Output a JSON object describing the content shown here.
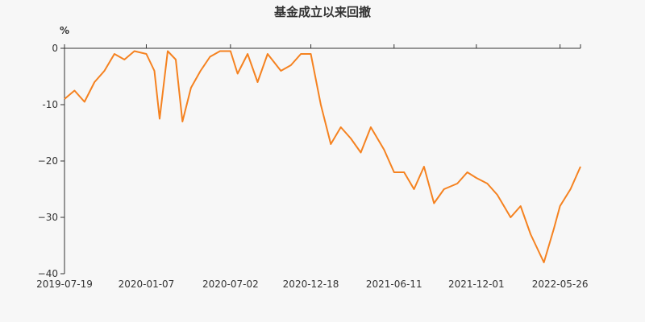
{
  "chart_data": {
    "type": "line",
    "title": "基金成立以来回撤",
    "ylabel": "%",
    "xlabel": "",
    "ylim": [
      -40,
      0
    ],
    "y_ticks": [
      0,
      -10,
      -20,
      -30,
      -40
    ],
    "y_tick_labels": [
      "0",
      "-10",
      "−20",
      "−30",
      "−40"
    ],
    "x_ticks": [
      "2019-07-19",
      "2020-01-07",
      "2020-07-02",
      "2020-12-18",
      "2021-06-11",
      "2021-12-01",
      "2022-05-26"
    ],
    "grid": false,
    "line_color": "#f58220",
    "series": [
      {
        "x": [
          "2019-07-19",
          "2019-08-09",
          "2019-08-30",
          "2019-09-20",
          "2019-10-11",
          "2019-11-01",
          "2019-11-22",
          "2019-12-13",
          "2020-01-07",
          "2020-01-24",
          "2020-02-04",
          "2020-02-21",
          "2020-03-09",
          "2020-03-23",
          "2020-04-10",
          "2020-04-30",
          "2020-05-20",
          "2020-06-10",
          "2020-07-02",
          "2020-07-17",
          "2020-08-07",
          "2020-08-28",
          "2020-09-18",
          "2020-10-16",
          "2020-11-06",
          "2020-11-27",
          "2020-12-18",
          "2021-01-08",
          "2021-01-29",
          "2021-02-19",
          "2021-03-12",
          "2021-04-02",
          "2021-04-23",
          "2021-05-21",
          "2021-06-11",
          "2021-07-02",
          "2021-07-23",
          "2021-08-13",
          "2021-09-03",
          "2021-09-24",
          "2021-10-22",
          "2021-11-12",
          "2021-12-01",
          "2021-12-24",
          "2022-01-14",
          "2022-02-11",
          "2022-03-04",
          "2022-03-25",
          "2022-04-22",
          "2022-05-13",
          "2022-05-26",
          "2022-06-17",
          "2022-07-08"
        ],
        "y": [
          -9.0,
          -7.5,
          -9.5,
          -6.0,
          -4.0,
          -1.0,
          -2.0,
          -0.5,
          -1.0,
          -4.0,
          -12.5,
          -0.5,
          -2.0,
          -13.0,
          -7.0,
          -4.0,
          -1.5,
          -0.5,
          -0.5,
          -4.5,
          -1.0,
          -6.0,
          -1.0,
          -4.0,
          -3.0,
          -1.0,
          -1.0,
          -10.0,
          -17.0,
          -14.0,
          -16.0,
          -18.5,
          -14.0,
          -18.0,
          -22.0,
          -22.0,
          -25.0,
          -21.0,
          -27.5,
          -25.0,
          -24.0,
          -22.0,
          -23.0,
          -24.0,
          -26.0,
          -30.0,
          -28.0,
          -33.0,
          -38.0,
          -32.0,
          -28.0,
          -25.0,
          -21.0
        ]
      }
    ]
  }
}
